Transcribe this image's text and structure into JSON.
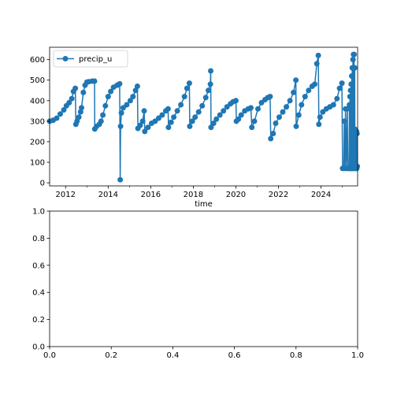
{
  "chart_data": [
    {
      "type": "line",
      "xlabel": "time",
      "ylabel": "",
      "x_axis": "date",
      "xlim": [
        "2011-04-01",
        "2025-09-20"
      ],
      "ylim": [
        -15,
        660
      ],
      "x_ticks": [
        "2012",
        "2014",
        "2016",
        "2018",
        "2020",
        "2022",
        "2024"
      ],
      "y_ticks": [
        "0",
        "100",
        "200",
        "300",
        "400",
        "500",
        "600"
      ],
      "legend_position": "top-left",
      "marker": "circle",
      "color": "#1f77b4",
      "series": [
        {
          "name": "precip_u",
          "points": [
            [
              "2011-04-01",
              300
            ],
            [
              "2011-06-01",
              305
            ],
            [
              "2011-08-01",
              315
            ],
            [
              "2011-10-01",
              335
            ],
            [
              "2011-12-01",
              355
            ],
            [
              "2012-01-15",
              375
            ],
            [
              "2012-03-01",
              390
            ],
            [
              "2012-04-15",
              410
            ],
            [
              "2012-05-15",
              445
            ],
            [
              "2012-06-15",
              460
            ],
            [
              "2012-06-25",
              285
            ],
            [
              "2012-07-15",
              300
            ],
            [
              "2012-08-15",
              320
            ],
            [
              "2012-09-15",
              345
            ],
            [
              "2012-10-01",
              365
            ],
            [
              "2012-11-01",
              440
            ],
            [
              "2012-12-01",
              475
            ],
            [
              "2013-01-01",
              490
            ],
            [
              "2013-02-01",
              492
            ],
            [
              "2013-04-01",
              495
            ],
            [
              "2013-05-10",
              495
            ],
            [
              "2013-05-15",
              262
            ],
            [
              "2013-06-15",
              275
            ],
            [
              "2013-08-01",
              285
            ],
            [
              "2013-09-01",
              300
            ],
            [
              "2013-10-01",
              330
            ],
            [
              "2013-11-15",
              375
            ],
            [
              "2014-01-01",
              420
            ],
            [
              "2014-02-15",
              445
            ],
            [
              "2014-04-01",
              465
            ],
            [
              "2014-06-01",
              475
            ],
            [
              "2014-07-15",
              482
            ],
            [
              "2014-07-25",
              15
            ],
            [
              "2014-08-01",
              275
            ],
            [
              "2014-08-15",
              340
            ],
            [
              "2014-09-15",
              365
            ],
            [
              "2014-11-15",
              380
            ],
            [
              "2015-01-15",
              400
            ],
            [
              "2015-03-01",
              420
            ],
            [
              "2015-04-15",
              450
            ],
            [
              "2015-05-15",
              470
            ],
            [
              "2015-05-25",
              265
            ],
            [
              "2015-07-01",
              280
            ],
            [
              "2015-08-15",
              300
            ],
            [
              "2015-09-10",
              350
            ],
            [
              "2015-09-20",
              250
            ],
            [
              "2015-11-15",
              270
            ],
            [
              "2016-01-15",
              290
            ],
            [
              "2016-03-15",
              300
            ],
            [
              "2016-05-15",
              315
            ],
            [
              "2016-07-15",
              330
            ],
            [
              "2016-09-15",
              350
            ],
            [
              "2016-10-25",
              360
            ],
            [
              "2016-11-01",
              270
            ],
            [
              "2016-12-15",
              295
            ],
            [
              "2017-02-01",
              320
            ],
            [
              "2017-04-01",
              350
            ],
            [
              "2017-06-01",
              380
            ],
            [
              "2017-08-01",
              420
            ],
            [
              "2017-09-15",
              460
            ],
            [
              "2017-10-25",
              485
            ],
            [
              "2017-11-01",
              275
            ],
            [
              "2017-12-15",
              300
            ],
            [
              "2018-02-01",
              320
            ],
            [
              "2018-04-01",
              345
            ],
            [
              "2018-06-01",
              375
            ],
            [
              "2018-08-01",
              415
            ],
            [
              "2018-09-15",
              450
            ],
            [
              "2018-10-20",
              480
            ],
            [
              "2018-10-25",
              545
            ],
            [
              "2018-11-01",
              270
            ],
            [
              "2018-12-15",
              290
            ],
            [
              "2019-02-01",
              310
            ],
            [
              "2019-04-01",
              330
            ],
            [
              "2019-06-01",
              350
            ],
            [
              "2019-08-01",
              370
            ],
            [
              "2019-10-01",
              385
            ],
            [
              "2019-11-15",
              395
            ],
            [
              "2020-01-01",
              400
            ],
            [
              "2020-01-10",
              300
            ],
            [
              "2020-02-15",
              310
            ],
            [
              "2020-04-01",
              330
            ],
            [
              "2020-06-01",
              350
            ],
            [
              "2020-08-01",
              360
            ],
            [
              "2020-09-15",
              365
            ],
            [
              "2020-10-01",
              270
            ],
            [
              "2020-11-15",
              300
            ],
            [
              "2021-01-15",
              360
            ],
            [
              "2021-03-15",
              390
            ],
            [
              "2021-05-15",
              405
            ],
            [
              "2021-07-01",
              415
            ],
            [
              "2021-08-10",
              420
            ],
            [
              "2021-08-20",
              215
            ],
            [
              "2021-10-01",
              240
            ],
            [
              "2021-11-15",
              290
            ],
            [
              "2022-01-15",
              320
            ],
            [
              "2022-03-15",
              345
            ],
            [
              "2022-05-15",
              370
            ],
            [
              "2022-07-15",
              400
            ],
            [
              "2022-09-15",
              440
            ],
            [
              "2022-10-25",
              500
            ],
            [
              "2022-11-01",
              275
            ],
            [
              "2022-12-15",
              330
            ],
            [
              "2023-02-01",
              380
            ],
            [
              "2023-04-01",
              420
            ],
            [
              "2023-06-01",
              450
            ],
            [
              "2023-08-01",
              470
            ],
            [
              "2023-09-15",
              480
            ],
            [
              "2023-10-20",
              580
            ],
            [
              "2023-11-15",
              620
            ],
            [
              "2023-11-25",
              285
            ],
            [
              "2023-12-15",
              320
            ],
            [
              "2024-02-01",
              345
            ],
            [
              "2024-04-01",
              360
            ],
            [
              "2024-06-01",
              370
            ],
            [
              "2024-08-01",
              380
            ],
            [
              "2024-10-01",
              410
            ],
            [
              "2024-11-15",
              460
            ],
            [
              "2024-12-25",
              485
            ],
            [
              "2025-01-05",
              70
            ],
            [
              "2025-01-25",
              70
            ],
            [
              "2025-02-05",
              300
            ],
            [
              "2025-02-15",
              70
            ],
            [
              "2025-02-25",
              360
            ],
            [
              "2025-03-10",
              70
            ],
            [
              "2025-03-25",
              360
            ],
            [
              "2025-04-05",
              70
            ],
            [
              "2025-04-15",
              70
            ],
            [
              "2025-04-25",
              70
            ],
            [
              "2025-05-01",
              380
            ],
            [
              "2025-05-05",
              70
            ],
            [
              "2025-05-10",
              420
            ],
            [
              "2025-05-15",
              70
            ],
            [
              "2025-05-20",
              450
            ],
            [
              "2025-05-25",
              70
            ],
            [
              "2025-06-01",
              480
            ],
            [
              "2025-06-05",
              70
            ],
            [
              "2025-06-10",
              520
            ],
            [
              "2025-06-15",
              70
            ],
            [
              "2025-06-20",
              560
            ],
            [
              "2025-06-25",
              70
            ],
            [
              "2025-07-01",
              600
            ],
            [
              "2025-07-05",
              70
            ],
            [
              "2025-07-10",
              625
            ],
            [
              "2025-07-15",
              70
            ],
            [
              "2025-07-20",
              625
            ],
            [
              "2025-07-25",
              80
            ],
            [
              "2025-08-01",
              560
            ],
            [
              "2025-08-05",
              70
            ],
            [
              "2025-08-10",
              260
            ],
            [
              "2025-08-15",
              70
            ],
            [
              "2025-08-20",
              250
            ],
            [
              "2025-08-25",
              70
            ],
            [
              "2025-09-01",
              250
            ],
            [
              "2025-09-05",
              70
            ],
            [
              "2025-09-10",
              240
            ],
            [
              "2025-09-15",
              80
            ]
          ]
        }
      ]
    },
    {
      "type": "line",
      "xlabel": "",
      "ylabel": "",
      "xlim": [
        0.0,
        1.0
      ],
      "ylim": [
        0.0,
        1.0
      ],
      "x_ticks": [
        "0.0",
        "0.2",
        "0.4",
        "0.6",
        "0.8",
        "1.0"
      ],
      "y_ticks": [
        "0.0",
        "0.2",
        "0.4",
        "0.6",
        "0.8",
        "1.0"
      ],
      "series": []
    }
  ]
}
